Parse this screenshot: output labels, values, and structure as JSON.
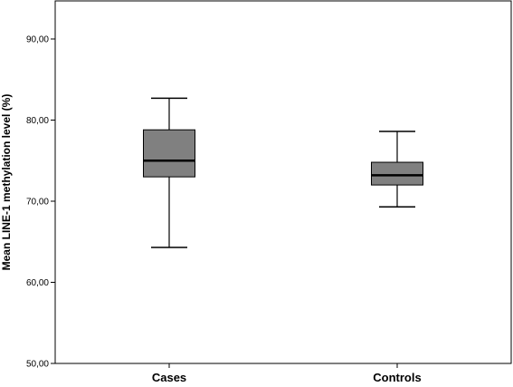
{
  "chart_data": {
    "type": "boxplot",
    "title": "",
    "xlabel": "",
    "ylabel": "Mean LINE-1 methylation level (%)",
    "ylim": [
      50,
      95
    ],
    "yticks": [
      50,
      60,
      70,
      80,
      90
    ],
    "ytick_labels": [
      "50,00",
      "60,00",
      "70,00",
      "80,00",
      "90,00"
    ],
    "grid": false,
    "box_color": "#808080",
    "categories": [
      "Cases",
      "Controls"
    ],
    "boxes": [
      {
        "category": "Cases",
        "whisker_low": 64.3,
        "q1": 73.0,
        "median": 75.0,
        "q3": 78.8,
        "whisker_high": 82.7
      },
      {
        "category": "Controls",
        "whisker_low": 69.3,
        "q1": 72.0,
        "median": 73.2,
        "q3": 74.8,
        "whisker_high": 78.6
      }
    ]
  }
}
